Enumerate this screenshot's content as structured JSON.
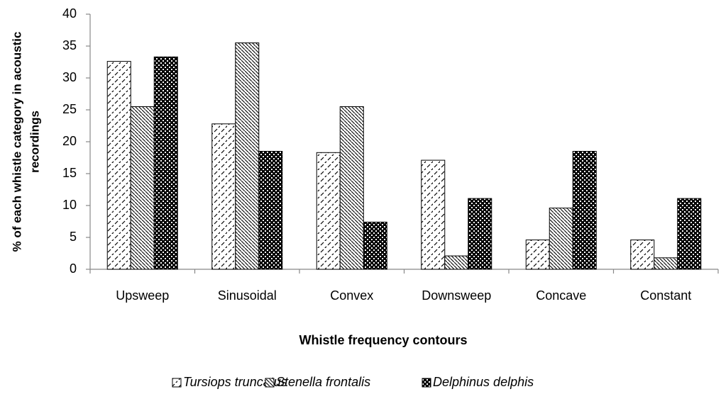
{
  "chart_data": {
    "type": "bar",
    "ylabel": [
      "% of each whistle category in acoustic",
      "recordings"
    ],
    "xlabel": "Whistle frequency contours",
    "categories": [
      "Upsweep",
      "Sinusoidal",
      "Convex",
      "Downsweep",
      "Concave",
      "Constant"
    ],
    "series": [
      {
        "name": "Tursiops truncatus",
        "values": [
          32.6,
          22.8,
          18.3,
          17.1,
          4.6,
          4.6
        ]
      },
      {
        "name": "Stenella frontalis",
        "values": [
          25.5,
          35.5,
          25.5,
          2.1,
          9.6,
          1.8
        ]
      },
      {
        "name": "Delphinus delphis",
        "values": [
          33.3,
          18.5,
          7.4,
          11.1,
          18.5,
          11.1
        ]
      }
    ],
    "ylim": [
      0,
      40
    ],
    "yticks": [
      0,
      5,
      10,
      15,
      20,
      25,
      30,
      35,
      40
    ],
    "legend": "bottom"
  }
}
